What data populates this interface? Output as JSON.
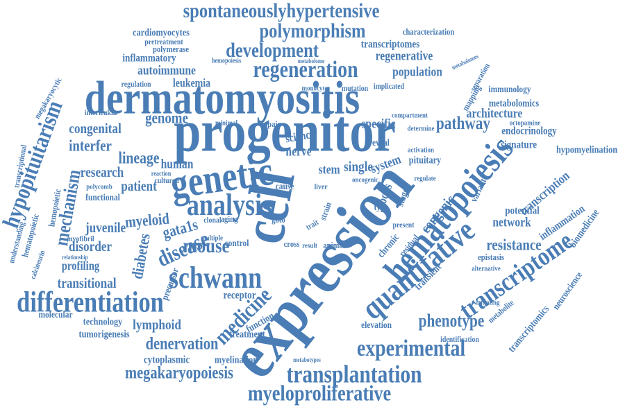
{
  "words": [
    "expression",
    "cell",
    "progenitor",
    "dermatomyositis",
    "genetic",
    "hematopoiesis",
    "quantitative",
    "analysis",
    "schwann",
    "differentiation",
    "transcriptome",
    "experimental",
    "transplantation",
    "myeloproliferative",
    "spontaneouslyhypertensive",
    "polymorphism",
    "development",
    "regeneration",
    "hypopituitarism",
    "mechanism",
    "mouse",
    "disease",
    "medicine",
    "megakaryopoiesis",
    "denervation",
    "phenotype",
    "pathway",
    "resistance",
    "lineage",
    "genome",
    "congenital",
    "interfer",
    "patient",
    "research",
    "myeloid",
    "juvenile",
    "gata1s",
    "diabetes",
    "disorder",
    "profiling",
    "transitional",
    "lymphoid",
    "tumorigenesis",
    "cytoplasmic",
    "myelination",
    "technology",
    "molecular",
    "treatment",
    "function",
    "receptor",
    "human",
    "nerve",
    "stem",
    "single",
    "system",
    "specific",
    "science",
    "repair",
    "minimal",
    "autoimmune",
    "leukemia",
    "regulation",
    "inflammatory",
    "cardiomyocytes",
    "pretreatment",
    "polymerase",
    "hemopoiesis",
    "characterization",
    "transcriptomes",
    "regenerative",
    "population",
    "implicated",
    "mutation",
    "monocyte",
    "metabolome",
    "immunology",
    "metabolomics",
    "architecture",
    "endocrinology",
    "signature",
    "hypomyelination",
    "octopamine",
    "mapping",
    "separation",
    "metabolomes",
    "pituitary",
    "compartment",
    "regulate",
    "locus",
    "stage",
    "congenic",
    "transcription",
    "network",
    "potential",
    "inflammation",
    "biomedicine",
    "variant",
    "chronic",
    "residual",
    "transient",
    "epistasis",
    "alternative",
    "transcriptomics",
    "neuroscience",
    "metabolite",
    "initiating",
    "elevation",
    "identification",
    "metabotypes",
    "hematopoietic",
    "hemopoietic",
    "transcriptional",
    "megakaryocytic",
    "interleukin",
    "understanding",
    "calcineurin",
    "polycomb",
    "functional",
    "myofibril",
    "relationship",
    "precursor",
    "cultured",
    "reaction",
    "aging",
    "clonal",
    "multiple",
    "control",
    "cross",
    "animal",
    "result",
    "cause",
    "liver",
    "goto",
    "type",
    "reveal",
    "oncogenic",
    "present",
    "activation",
    "determine",
    "strain",
    "trait"
  ]
}
